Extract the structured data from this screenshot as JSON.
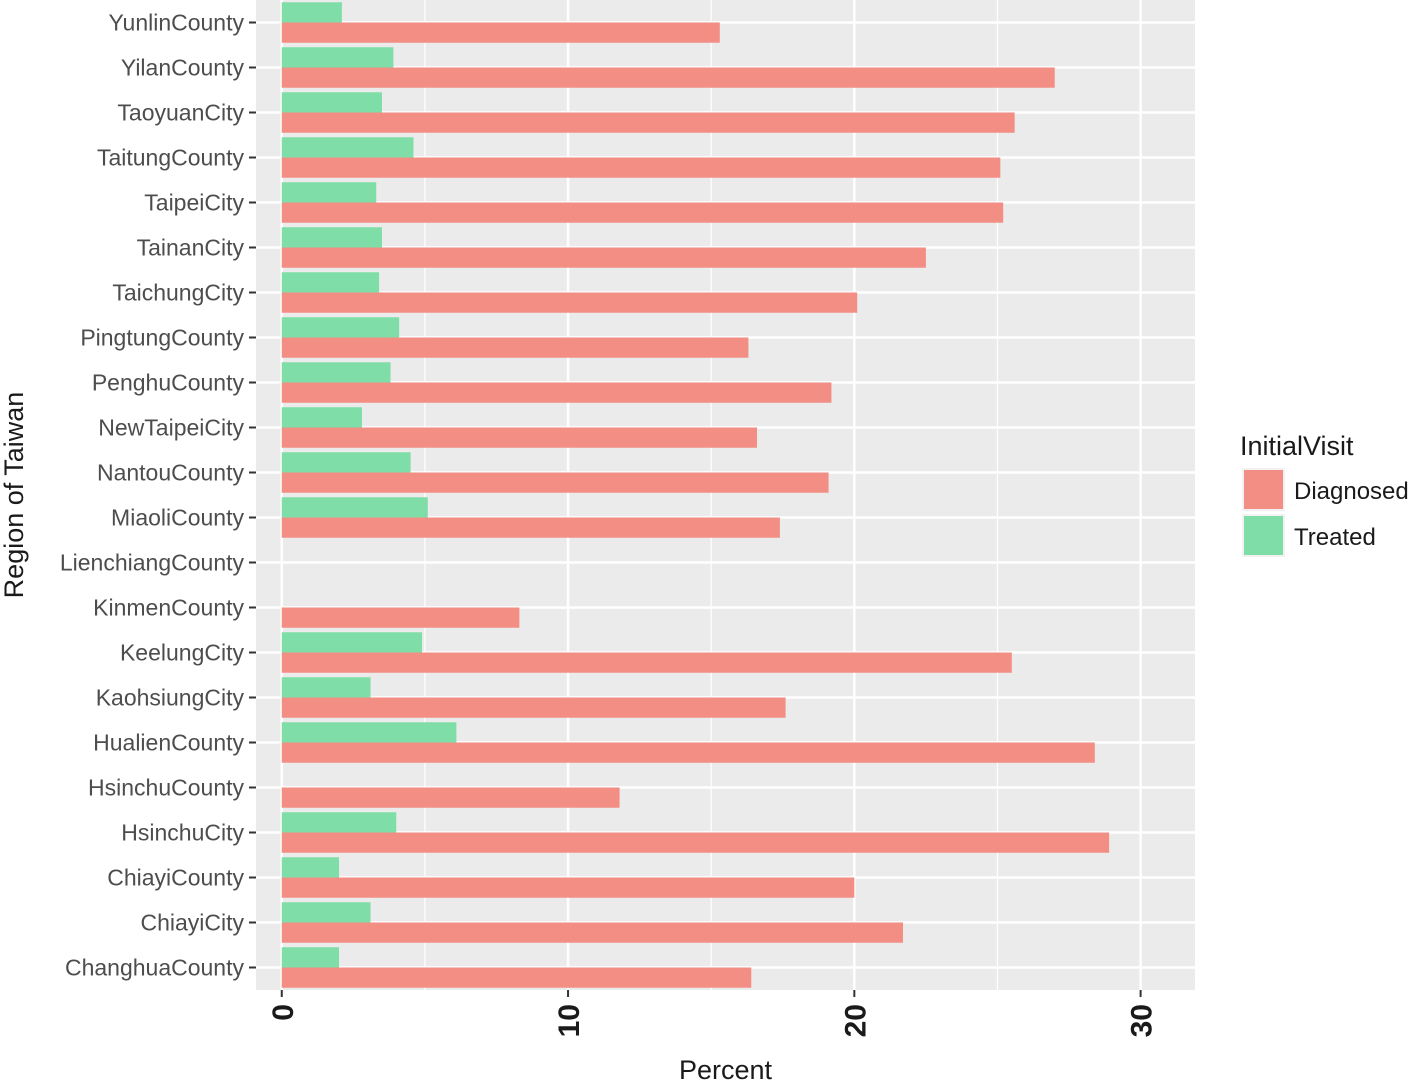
{
  "chart_data": {
    "type": "bar",
    "orientation": "horizontal",
    "title": "",
    "xlabel": "Percent",
    "ylabel": "Region of Taiwan",
    "xlim": [
      -0.9,
      31.9
    ],
    "x_ticks": [
      "0",
      "10",
      "20",
      "30"
    ],
    "x_tick_values": [
      0,
      10,
      20,
      30
    ],
    "grid": true,
    "legend": {
      "title": "InitialVisit",
      "position": "right"
    },
    "colors": {
      "Diagnosed": "#F28E84",
      "Treated": "#7FDEA7",
      "panel": "#EBEBEB",
      "grid": "#FFFFFF"
    },
    "categories": [
      "YunlinCounty",
      "YilanCounty",
      "TaoyuanCity",
      "TaitungCounty",
      "TaipeiCity",
      "TainanCity",
      "TaichungCity",
      "PingtungCounty",
      "PenghuCounty",
      "NewTaipeiCity",
      "NantouCounty",
      "MiaoliCounty",
      "LienchiangCounty",
      "KinmenCounty",
      "KeelungCity",
      "KaohsiungCity",
      "HualienCounty",
      "HsinchuCounty",
      "HsinchuCity",
      "ChiayiCounty",
      "ChiayiCity",
      "ChanghuaCounty"
    ],
    "series": [
      {
        "name": "Diagnosed",
        "values": [
          15.3,
          27.0,
          25.6,
          25.1,
          25.2,
          22.5,
          20.1,
          16.3,
          19.2,
          16.6,
          19.1,
          17.4,
          0,
          8.3,
          25.5,
          17.6,
          28.4,
          11.8,
          28.9,
          20.0,
          21.7,
          16.4
        ]
      },
      {
        "name": "Treated",
        "values": [
          2.1,
          3.9,
          3.5,
          4.6,
          3.3,
          3.5,
          3.4,
          4.1,
          3.8,
          2.8,
          4.5,
          5.1,
          0,
          0,
          4.9,
          3.1,
          6.1,
          0,
          4.0,
          2.0,
          3.1,
          2.0
        ]
      }
    ]
  }
}
